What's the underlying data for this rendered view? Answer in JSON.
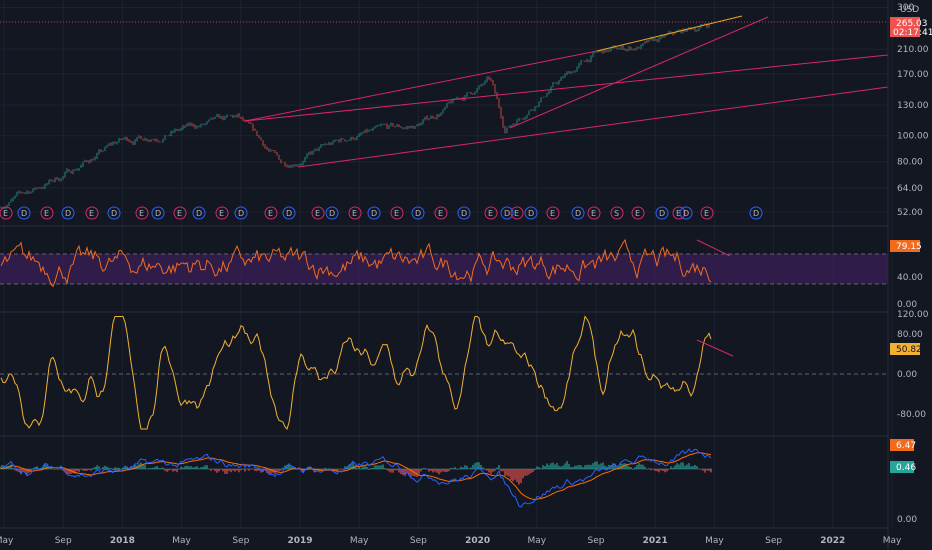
{
  "colors": {
    "background": "#131722",
    "grid": "#1e222d",
    "text": "#b2b5be",
    "price_up": "#26a69a",
    "price_down": "#ef5350",
    "trendline": "#d6276a",
    "trendline_top": "#f5a623",
    "rsi": "#f26b1d",
    "rsi_band": "#3a1f56",
    "oscillator": "#f2b134",
    "macd_line": "#2962ff",
    "signal_line": "#ff6d00",
    "hist_pos": "#26a69a",
    "hist_neg": "#ef5350",
    "badge_price": "#ef5350",
    "badge_rsi": "#f26b1d",
    "badge_osc": "#f2b134",
    "badge_macd": "#f26b1d",
    "badge_signal": "#26a69a",
    "event_earnings": "#d6276a",
    "event_dividend": "#2962ff"
  },
  "chart_data": [
    {
      "type": "line",
      "pane": "price",
      "log_scale": true,
      "currency": "USD",
      "last_price": "265.03",
      "countdown": "02:17:41",
      "y_ticks": [
        "52.00",
        "64.00",
        "80.00",
        "100.00",
        "130.00",
        "170.00",
        "210.00",
        "300"
      ],
      "x_ticks": [
        "May",
        "Sep",
        "2018",
        "May",
        "Sep",
        "2019",
        "May",
        "Sep",
        "2020",
        "May",
        "Sep",
        "2021",
        "May",
        "Sep",
        "2022",
        "May"
      ],
      "x_range": [
        "2017-05",
        "2022-05"
      ],
      "y_range": [
        45,
        300
      ],
      "series": [
        {
          "x": [
            "2017-05",
            "2017-09",
            "2018-01",
            "2018-05",
            "2018-09",
            "2018-12",
            "2019-05",
            "2019-09",
            "2020-02",
            "2020-03",
            "2020-06",
            "2020-09",
            "2021-01",
            "2021-05"
          ],
          "values": [
            55,
            70,
            95,
            105,
            115,
            78,
            100,
            108,
            160,
            105,
            150,
            200,
            220,
            265
          ]
        }
      ],
      "events": [
        "E",
        "D",
        "E",
        "D",
        "E",
        "D",
        "E",
        "D",
        "E",
        "D",
        "E",
        "D",
        "E",
        "D",
        "E",
        "D",
        "E",
        "D",
        "E",
        "D",
        "E",
        "D",
        "E",
        "D",
        "E",
        "D",
        "E",
        "D",
        "E",
        "S",
        "E",
        "D",
        "E",
        "D",
        "E",
        "D",
        "E",
        "D",
        "E",
        "E"
      ]
    },
    {
      "type": "line",
      "pane": "rsi",
      "last_value": "79.15",
      "y_ticks": [
        "40.00",
        "0.00"
      ],
      "guides": [
        70,
        30
      ],
      "y_range": [
        0,
        100
      ]
    },
    {
      "type": "line",
      "pane": "oscillator",
      "last_value": "50.82",
      "y_ticks": [
        "120.00",
        "80.00",
        "0.00",
        "-80.00"
      ],
      "guides": [
        0
      ],
      "y_range": [
        -130,
        130
      ]
    },
    {
      "type": "bar",
      "pane": "macd",
      "last_macd": "6.47",
      "last_signal": "0.46",
      "y_ticks": [
        "0.00"
      ]
    }
  ]
}
